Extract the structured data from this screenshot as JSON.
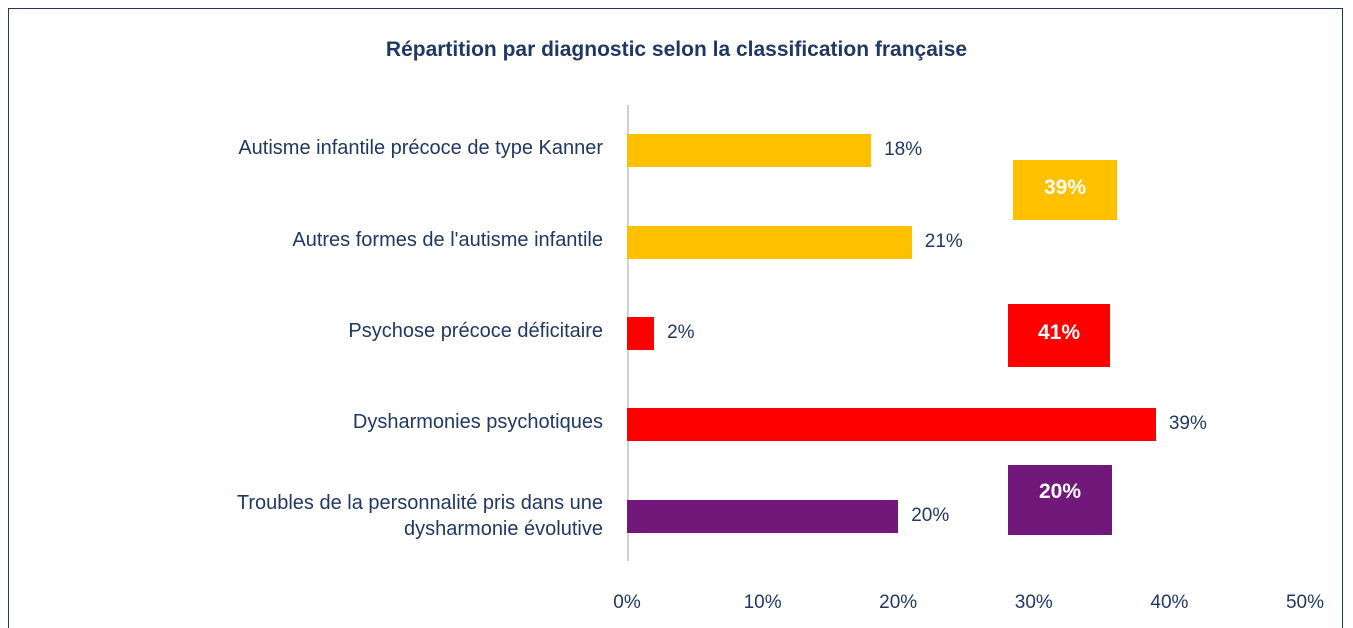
{
  "chart_data": {
    "type": "hbar",
    "title": "Répartition par diagnostic selon la classification française",
    "categories": [
      "Autisme infantile précoce de type Kanner",
      "Autres formes de l'autisme infantile",
      "Psychose précoce déficitaire",
      "Dysharmonies psychotiques",
      "Troubles de la personnalité pris dans une dysharmonie évolutive"
    ],
    "values": [
      18,
      21,
      2,
      39,
      20
    ],
    "value_labels": [
      "18%",
      "21%",
      "2%",
      "39%",
      "20%"
    ],
    "colors": [
      "#ffc000",
      "#ffc000",
      "#ff0000",
      "#ff0000",
      "#70197a"
    ],
    "xlim": [
      0,
      50
    ],
    "xticks": [
      {
        "value": 0,
        "label": "0%"
      },
      {
        "value": 10,
        "label": "10%"
      },
      {
        "value": 20,
        "label": "20%"
      },
      {
        "value": 30,
        "label": "30%"
      },
      {
        "value": 40,
        "label": "40%"
      },
      {
        "value": 50,
        "label": "50%"
      }
    ],
    "annotations": [
      {
        "text": "39%",
        "color": "#ffc000"
      },
      {
        "text": "41%",
        "color": "#ff0000"
      },
      {
        "text": "20%",
        "color": "#70197a"
      }
    ]
  }
}
